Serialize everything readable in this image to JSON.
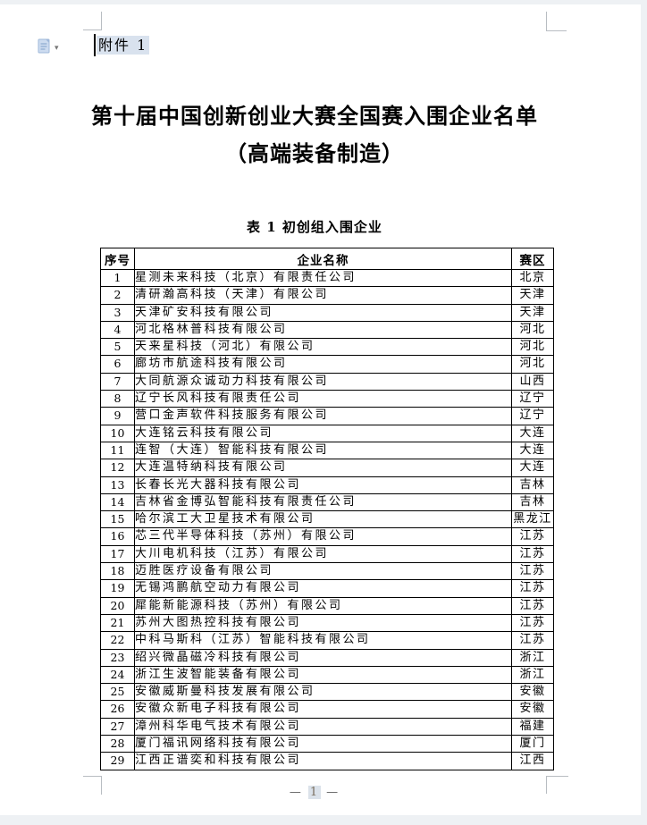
{
  "document": {
    "attachment_label": "附件 1",
    "title_line1": "第十届中国创新创业大赛全国赛入围企业名单",
    "title_line2": "（高端装备制造）",
    "table_caption": "表 1 初创组入围企业",
    "page_number": "1",
    "footer_dash": "—"
  },
  "toolbar": {
    "paste_dropdown_glyph": "▾"
  },
  "colors": {
    "field_shading": "#d9e2ee",
    "crop_mark": "#b8bdc2",
    "table_border": "#000000"
  },
  "table": {
    "headers": [
      "序号",
      "企业名称",
      "赛区"
    ],
    "rows": [
      {
        "no": "1",
        "name": "星测未来科技（北京）有限责任公司",
        "region": "北京"
      },
      {
        "no": "2",
        "name": "清研瀚高科技（天津）有限公司",
        "region": "天津"
      },
      {
        "no": "3",
        "name": "天津矿安科技有限公司",
        "region": "天津"
      },
      {
        "no": "4",
        "name": "河北格林普科技有限公司",
        "region": "河北"
      },
      {
        "no": "5",
        "name": "天来星科技（河北）有限公司",
        "region": "河北"
      },
      {
        "no": "6",
        "name": "廊坊市航途科技有限公司",
        "region": "河北"
      },
      {
        "no": "7",
        "name": "大同航源众诚动力科技有限公司",
        "region": "山西"
      },
      {
        "no": "8",
        "name": "辽宁长风科技有限责任公司",
        "region": "辽宁"
      },
      {
        "no": "9",
        "name": "营口金声软件科技服务有限公司",
        "region": "辽宁"
      },
      {
        "no": "10",
        "name": "大连铭云科技有限公司",
        "region": "大连"
      },
      {
        "no": "11",
        "name": "连智（大连）智能科技有限公司",
        "region": "大连"
      },
      {
        "no": "12",
        "name": "大连温特纳科技有限公司",
        "region": "大连"
      },
      {
        "no": "13",
        "name": "长春长光大器科技有限公司",
        "region": "吉林"
      },
      {
        "no": "14",
        "name": "吉林省金博弘智能科技有限责任公司",
        "region": "吉林"
      },
      {
        "no": "15",
        "name": "哈尔滨工大卫星技术有限公司",
        "region": "黑龙江"
      },
      {
        "no": "16",
        "name": "芯三代半导体科技（苏州）有限公司",
        "region": "江苏"
      },
      {
        "no": "17",
        "name": "大川电机科技（江苏）有限公司",
        "region": "江苏"
      },
      {
        "no": "18",
        "name": "迈胜医疗设备有限公司",
        "region": "江苏"
      },
      {
        "no": "19",
        "name": "无锡鸿鹏航空动力有限公司",
        "region": "江苏"
      },
      {
        "no": "20",
        "name": "犀能新能源科技（苏州）有限公司",
        "region": "江苏"
      },
      {
        "no": "21",
        "name": "苏州大图热控科技有限公司",
        "region": "江苏"
      },
      {
        "no": "22",
        "name": "中科马斯科（江苏）智能科技有限公司",
        "region": "江苏"
      },
      {
        "no": "23",
        "name": "绍兴微晶磁冷科技有限公司",
        "region": "浙江"
      },
      {
        "no": "24",
        "name": "浙江生波智能装备有限公司",
        "region": "浙江"
      },
      {
        "no": "25",
        "name": "安徽威斯曼科技发展有限公司",
        "region": "安徽"
      },
      {
        "no": "26",
        "name": "安徽众新电子科技有限公司",
        "region": "安徽"
      },
      {
        "no": "27",
        "name": "漳州科华电气技术有限公司",
        "region": "福建"
      },
      {
        "no": "28",
        "name": "厦门福讯网络科技有限公司",
        "region": "厦门"
      },
      {
        "no": "29",
        "name": "江西正谱奕和科技有限公司",
        "region": "江西"
      }
    ]
  }
}
